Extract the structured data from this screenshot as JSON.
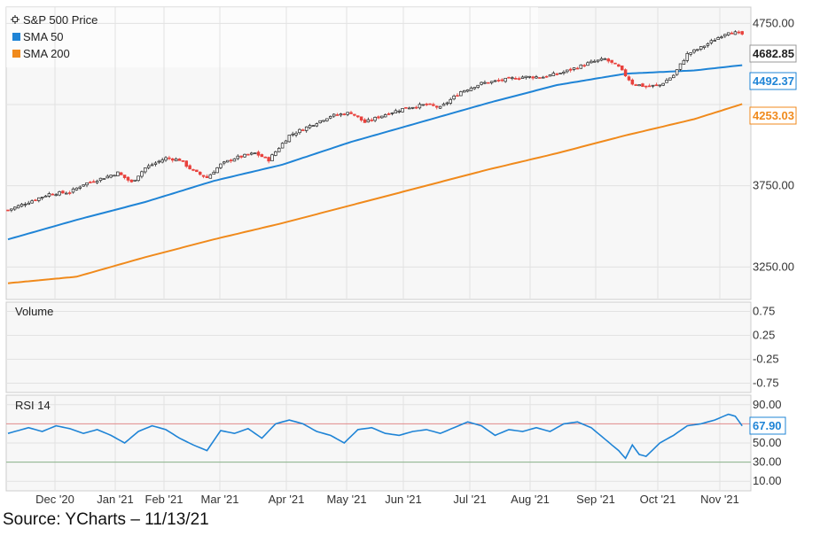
{
  "legend": {
    "price_label": "S&P 500 Price",
    "sma50_label": "SMA 50",
    "sma200_label": "SMA 200"
  },
  "colors": {
    "up": "#222222",
    "down": "#e8413c",
    "sma50": "#1f84d6",
    "sma200": "#f08a1c",
    "rsi": "#1f84d6",
    "grid": "#e2e2e2",
    "panel_bg": "#f7f7f7"
  },
  "price_tags": {
    "last": "4682.85",
    "sma50": "4492.37",
    "sma200": "4253.03"
  },
  "panels": {
    "volume_label": "Volume",
    "rsi_label": "RSI 14",
    "rsi_value": "67.90"
  },
  "source": "Source: YCharts – 11/13/21",
  "chart_data": {
    "type": "candlestick",
    "x_tick_labels": [
      "Dec '20",
      "Jan '21",
      "Feb '21",
      "Mar '21",
      "Apr '21",
      "May '21",
      "Jun '21",
      "Jul '21",
      "Aug '21",
      "Sep '21",
      "Oct '21",
      "Nov '21"
    ],
    "price_y_tick_labels": [
      "4750.00",
      "3750.00",
      "3250.00"
    ],
    "price_ylim": [
      3050,
      4850
    ],
    "volume_y_tick_labels": [
      "0.75",
      "0.25",
      "-0.25",
      "-0.75"
    ],
    "rsi_y_tick_labels": [
      "90.00",
      "50.00",
      "30.00",
      "10.00"
    ],
    "rsi_ylim": [
      0,
      100
    ],
    "rsi_bands": [
      70,
      30
    ],
    "close_keypoints": [
      [
        0,
        3600
      ],
      [
        6,
        3650
      ],
      [
        12,
        3700
      ],
      [
        18,
        3710
      ],
      [
        22,
        3760
      ],
      [
        28,
        3800
      ],
      [
        32,
        3830
      ],
      [
        36,
        3770
      ],
      [
        40,
        3860
      ],
      [
        46,
        3920
      ],
      [
        50,
        3910
      ],
      [
        54,
        3840
      ],
      [
        58,
        3800
      ],
      [
        62,
        3880
      ],
      [
        66,
        3920
      ],
      [
        72,
        3950
      ],
      [
        76,
        3910
      ],
      [
        82,
        4060
      ],
      [
        88,
        4120
      ],
      [
        94,
        4180
      ],
      [
        100,
        4200
      ],
      [
        104,
        4140
      ],
      [
        110,
        4190
      ],
      [
        116,
        4230
      ],
      [
        122,
        4250
      ],
      [
        126,
        4230
      ],
      [
        132,
        4330
      ],
      [
        138,
        4380
      ],
      [
        144,
        4400
      ],
      [
        150,
        4420
      ],
      [
        156,
        4420
      ],
      [
        162,
        4450
      ],
      [
        166,
        4480
      ],
      [
        170,
        4510
      ],
      [
        174,
        4530
      ],
      [
        178,
        4480
      ],
      [
        182,
        4380
      ],
      [
        186,
        4360
      ],
      [
        190,
        4370
      ],
      [
        194,
        4430
      ],
      [
        198,
        4560
      ],
      [
        202,
        4600
      ],
      [
        206,
        4650
      ],
      [
        210,
        4700
      ],
      [
        214,
        4682.85
      ]
    ],
    "sma50_keypoints": [
      [
        0,
        3420
      ],
      [
        20,
        3540
      ],
      [
        40,
        3650
      ],
      [
        60,
        3780
      ],
      [
        80,
        3880
      ],
      [
        100,
        4020
      ],
      [
        120,
        4140
      ],
      [
        140,
        4260
      ],
      [
        160,
        4370
      ],
      [
        180,
        4440
      ],
      [
        190,
        4450
      ],
      [
        200,
        4460
      ],
      [
        214,
        4492.37
      ]
    ],
    "sma200_keypoints": [
      [
        0,
        3150
      ],
      [
        20,
        3190
      ],
      [
        40,
        3310
      ],
      [
        60,
        3420
      ],
      [
        80,
        3520
      ],
      [
        100,
        3630
      ],
      [
        120,
        3740
      ],
      [
        140,
        3850
      ],
      [
        160,
        3950
      ],
      [
        180,
        4060
      ],
      [
        200,
        4160
      ],
      [
        214,
        4253.03
      ]
    ],
    "rsi_keypoints": [
      [
        0,
        60
      ],
      [
        6,
        66
      ],
      [
        10,
        62
      ],
      [
        14,
        68
      ],
      [
        18,
        65
      ],
      [
        22,
        60
      ],
      [
        26,
        64
      ],
      [
        30,
        58
      ],
      [
        34,
        50
      ],
      [
        38,
        62
      ],
      [
        42,
        68
      ],
      [
        46,
        64
      ],
      [
        50,
        55
      ],
      [
        54,
        48
      ],
      [
        58,
        42
      ],
      [
        62,
        63
      ],
      [
        66,
        60
      ],
      [
        70,
        65
      ],
      [
        74,
        55
      ],
      [
        78,
        70
      ],
      [
        82,
        74
      ],
      [
        86,
        70
      ],
      [
        90,
        62
      ],
      [
        94,
        58
      ],
      [
        98,
        50
      ],
      [
        102,
        64
      ],
      [
        106,
        66
      ],
      [
        110,
        60
      ],
      [
        114,
        58
      ],
      [
        118,
        62
      ],
      [
        122,
        64
      ],
      [
        126,
        60
      ],
      [
        130,
        66
      ],
      [
        134,
        72
      ],
      [
        138,
        68
      ],
      [
        142,
        58
      ],
      [
        146,
        64
      ],
      [
        150,
        62
      ],
      [
        154,
        66
      ],
      [
        158,
        62
      ],
      [
        162,
        70
      ],
      [
        166,
        72
      ],
      [
        170,
        66
      ],
      [
        174,
        54
      ],
      [
        178,
        42
      ],
      [
        180,
        34
      ],
      [
        182,
        48
      ],
      [
        184,
        38
      ],
      [
        186,
        36
      ],
      [
        190,
        50
      ],
      [
        194,
        58
      ],
      [
        198,
        68
      ],
      [
        202,
        70
      ],
      [
        206,
        74
      ],
      [
        210,
        80
      ],
      [
        212,
        78
      ],
      [
        214,
        67.9
      ]
    ]
  }
}
